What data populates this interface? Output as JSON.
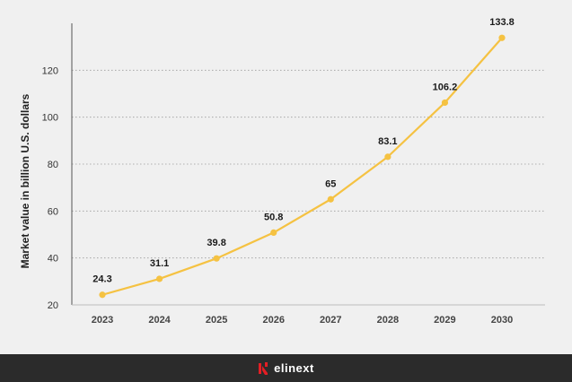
{
  "chart_data": {
    "type": "line",
    "x": [
      2023,
      2024,
      2025,
      2026,
      2027,
      2028,
      2029,
      2030
    ],
    "values": [
      24.3,
      31.1,
      39.8,
      50.8,
      65,
      83.1,
      106.2,
      133.8
    ],
    "data_labels": [
      "24.3",
      "31.1",
      "39.8",
      "50.8",
      "65",
      "83.1",
      "106.2",
      "133.8"
    ],
    "x_tick_labels": [
      "2023",
      "2024",
      "2025",
      "2026",
      "2027",
      "2028",
      "2029",
      "2030"
    ],
    "y_ticks": [
      20,
      40,
      60,
      80,
      100,
      120
    ],
    "ylabel": "Market value in billion U.S. dollars",
    "ylim": [
      20,
      140
    ],
    "grid": "horizontal dotted",
    "line_color": "#f5c242",
    "point_color": "#f5c242"
  },
  "footer": {
    "brand": "elinext",
    "brand_color": "#e31e24"
  }
}
